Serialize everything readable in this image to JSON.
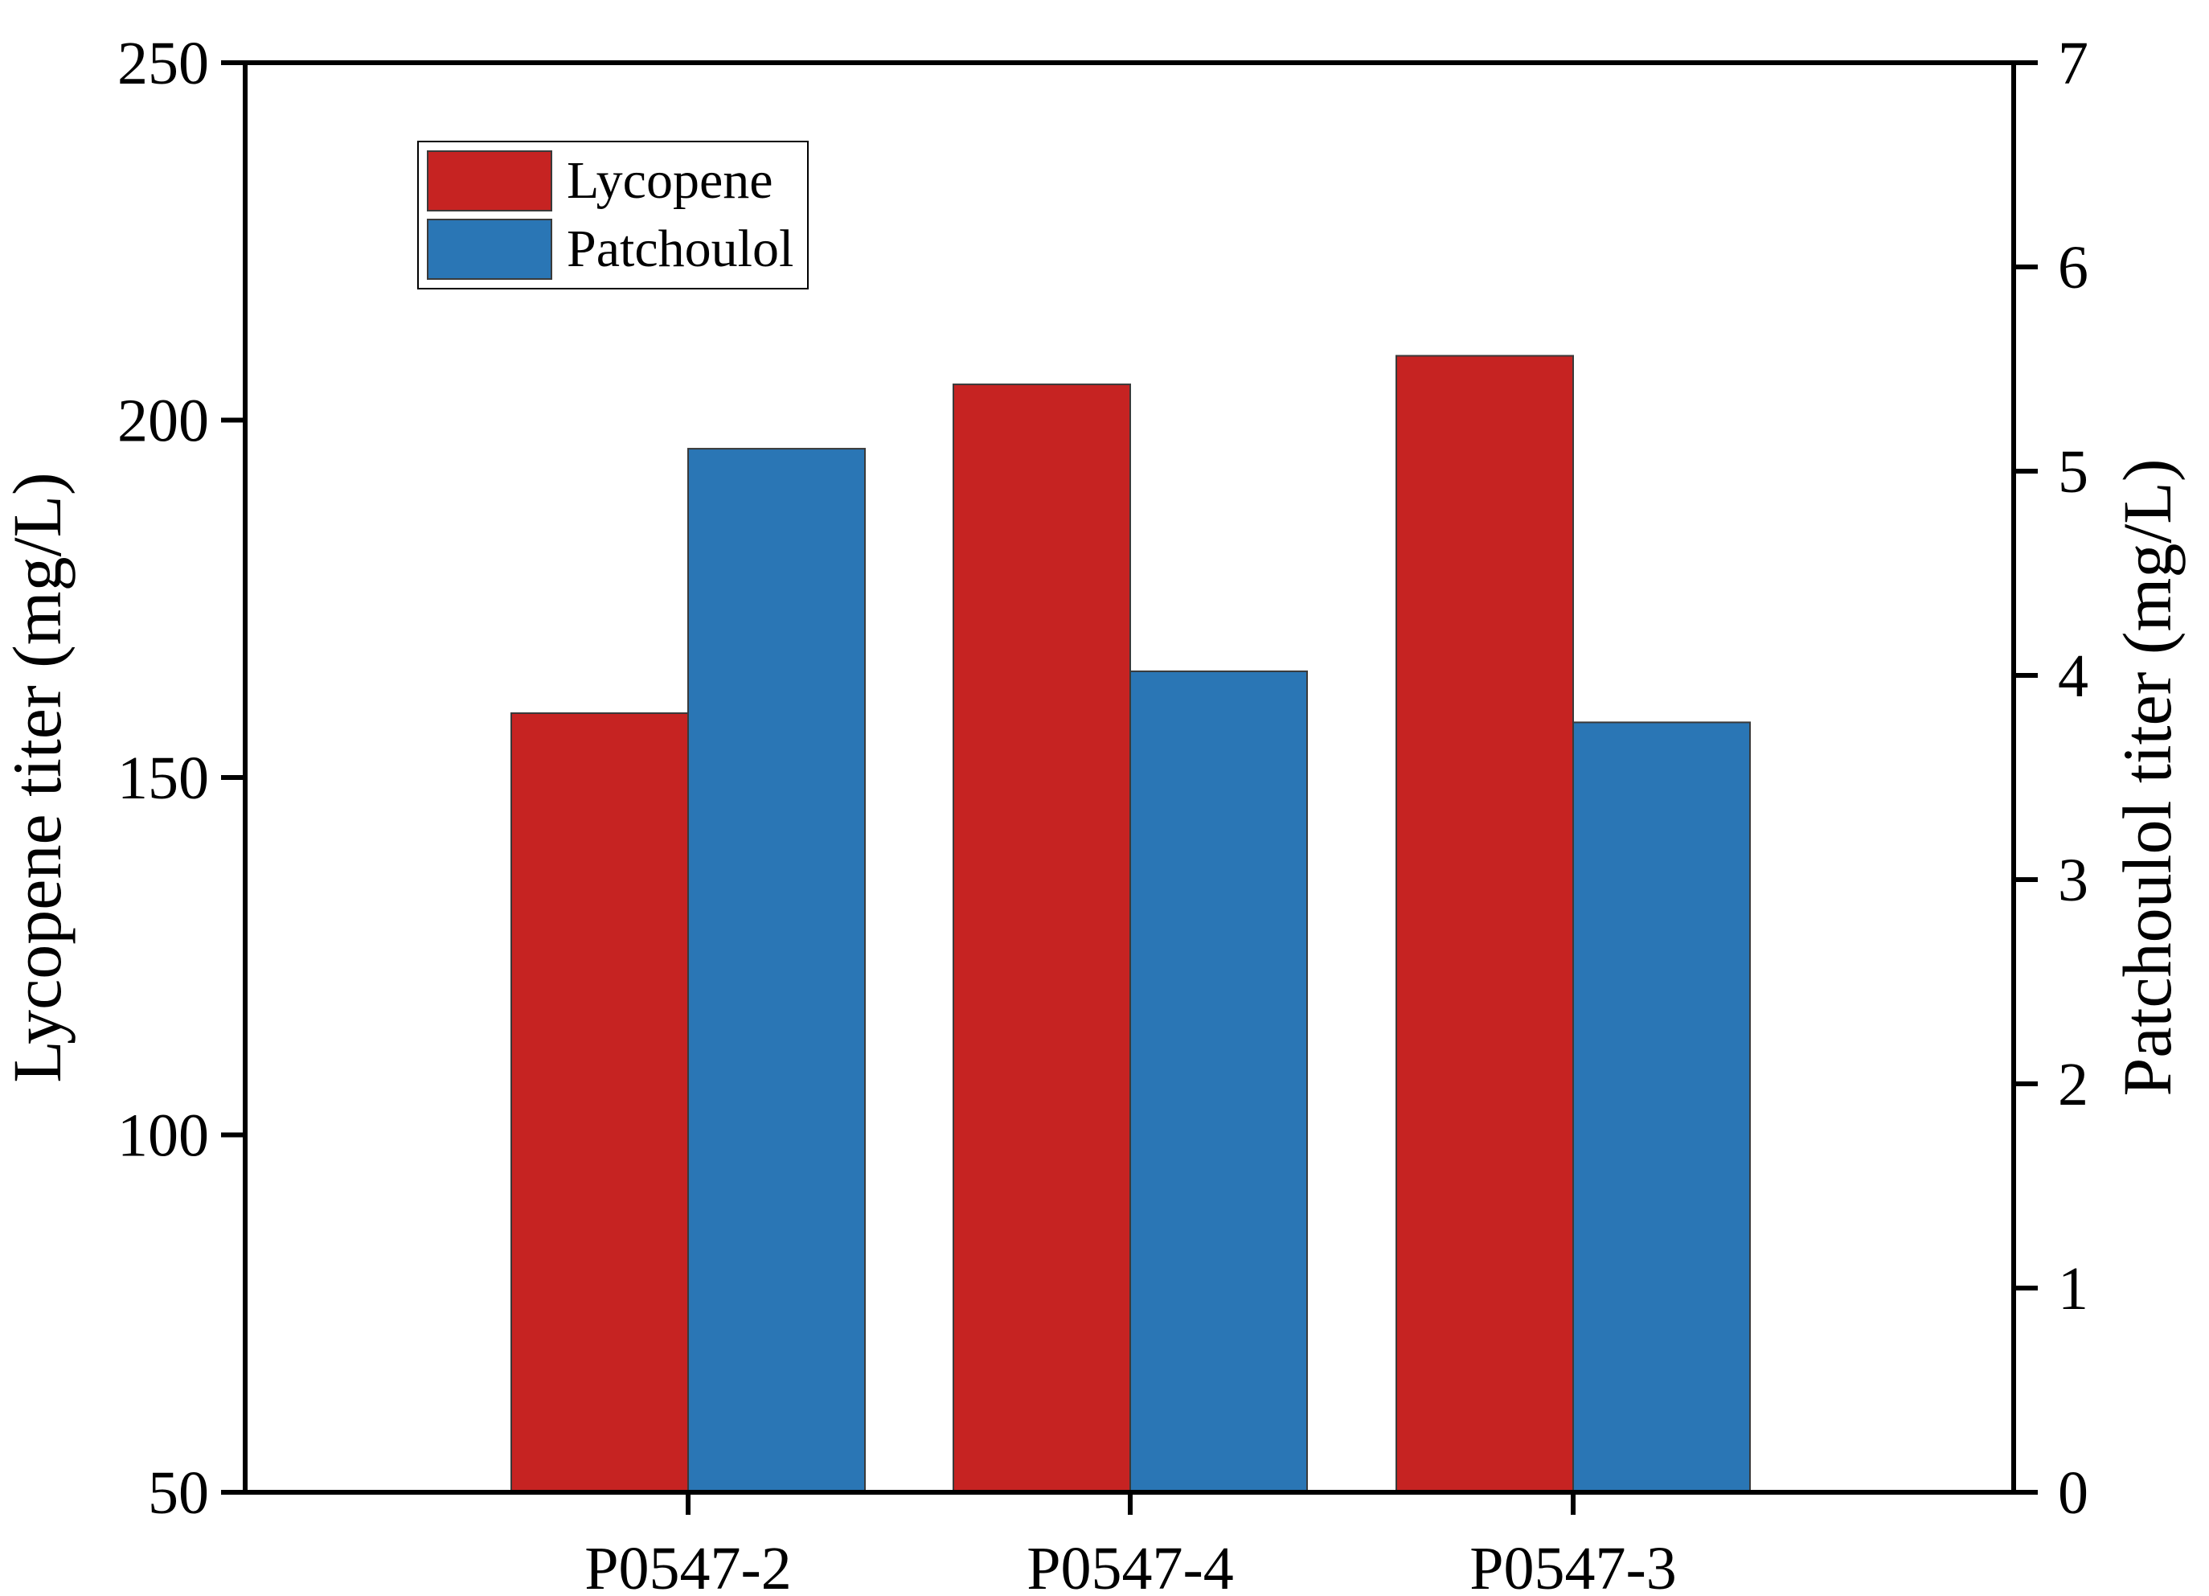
{
  "chart_data": {
    "type": "bar",
    "categories": [
      "P0547-2",
      "P0547-4",
      "P0547-3"
    ],
    "series": [
      {
        "name": "Lycopene",
        "axis": "left",
        "color": "#c62322",
        "values": [
          159,
          205,
          209
        ]
      },
      {
        "name": "Patchoulol",
        "axis": "right",
        "color": "#2a76b5",
        "values": [
          5.11,
          4.02,
          3.77
        ]
      }
    ],
    "y_left": {
      "label": "Lycopene titer (mg/L)",
      "lim": [
        50,
        250
      ],
      "ticks": [
        50,
        100,
        150,
        200,
        250
      ]
    },
    "y_right": {
      "label": "Patchoulol titer (mg/L)",
      "lim": [
        0,
        7
      ],
      "ticks": [
        0,
        1,
        2,
        3,
        4,
        5,
        6,
        7
      ]
    },
    "xlabel": "",
    "title": "",
    "grid": false,
    "legend": {
      "position": "top-left",
      "frame": true
    }
  }
}
